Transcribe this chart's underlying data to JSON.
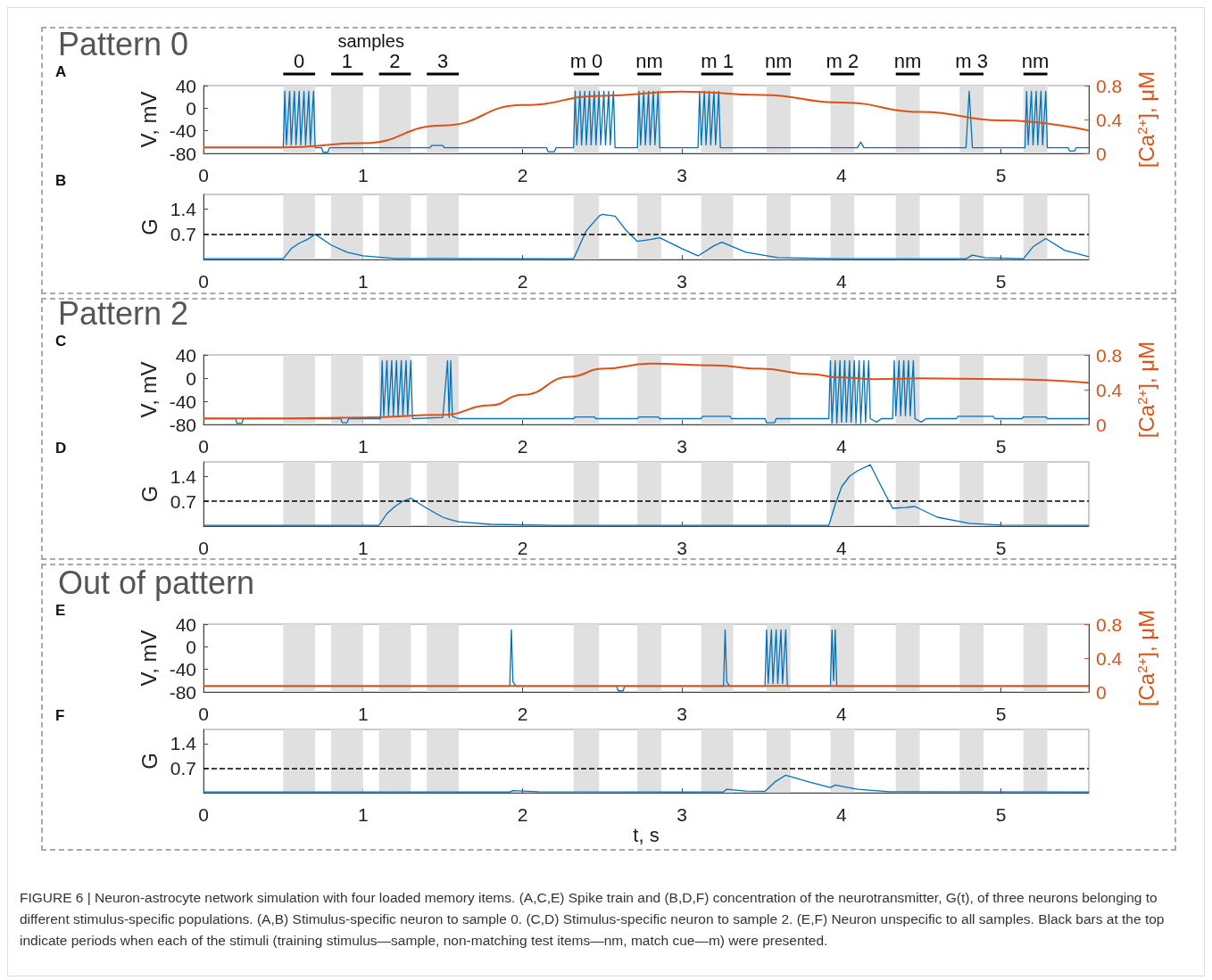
{
  "chart_data": [
    {
      "type": "line",
      "title": "Pattern 0",
      "ylabel": "V, mV",
      "y2label": "[Ca$^{2+}$], μM",
      "marker": "none",
      "xlim": [
        0,
        5.55
      ],
      "xticks": [
        0,
        1,
        2,
        3,
        4,
        5
      ],
      "ylim": [
        -80,
        40
      ],
      "yticks": [
        -80,
        -40,
        0,
        40
      ],
      "y2lim": [
        0,
        0.8
      ],
      "y2ticks": [
        0,
        0.4,
        0.8
      ],
      "series": [
        {
          "color": "#0072bd",
          "x": [
            0,
            0.5,
            0.51,
            0.52,
            0.54,
            0.55,
            0.57,
            0.58,
            0.6,
            0.61,
            0.63,
            0.64,
            0.66,
            0.67,
            0.69,
            0.7,
            0.74,
            0.75,
            0.78,
            0.79,
            1.42,
            1.43,
            1.5,
            1.51,
            2.15,
            2.16,
            2.2,
            2.21,
            2.32,
            2.33,
            2.34,
            2.36,
            2.37,
            2.39,
            2.4,
            2.42,
            2.43,
            2.45,
            2.46,
            2.48,
            2.49,
            2.51,
            2.52,
            2.54,
            2.55,
            2.57,
            2.58,
            2.72,
            2.73,
            2.74,
            2.76,
            2.77,
            2.79,
            2.8,
            2.82,
            2.83,
            2.85,
            2.86,
            3.1,
            3.11,
            3.12,
            3.14,
            3.15,
            3.17,
            3.18,
            3.2,
            3.21,
            3.23,
            3.24,
            4.1,
            4.12,
            4.14,
            4.78,
            4.8,
            4.82,
            5.15,
            5.16,
            5.17,
            5.19,
            5.2,
            5.22,
            5.23,
            5.25,
            5.26,
            5.28,
            5.29,
            5.42,
            5.43,
            5.46,
            5.47,
            5.55
          ],
          "values": [
            -70,
            -70,
            30,
            -65,
            30,
            -65,
            30,
            -65,
            30,
            -65,
            30,
            -65,
            30,
            -65,
            30,
            -70,
            -70,
            -78,
            -78,
            -70,
            -70,
            -66,
            -66,
            -70,
            -70,
            -77,
            -77,
            -70,
            -70,
            30,
            -65,
            30,
            -65,
            30,
            -65,
            30,
            -65,
            30,
            -65,
            30,
            -65,
            30,
            -65,
            30,
            -65,
            30,
            -70,
            -70,
            30,
            -65,
            30,
            -65,
            30,
            -65,
            30,
            -65,
            30,
            -70,
            -70,
            30,
            -65,
            30,
            -65,
            30,
            -65,
            30,
            -65,
            30,
            -70,
            -70,
            -60,
            -70,
            -70,
            30,
            -70,
            -70,
            30,
            -65,
            30,
            -65,
            30,
            -65,
            30,
            -65,
            30,
            -70,
            -70,
            -76,
            -76,
            -70,
            -70
          ]
        },
        {
          "color": "#d95319",
          "axis": "y2",
          "x": [
            0,
            0.5,
            1,
            1.5,
            2,
            2.5,
            3,
            3.5,
            4,
            4.5,
            5,
            5.55
          ],
          "values": [
            0.07,
            0.07,
            0.12,
            0.33,
            0.57,
            0.68,
            0.73,
            0.69,
            0.6,
            0.49,
            0.39,
            0.27
          ]
        }
      ],
      "bands": [
        {
          "axis": "x",
          "from": 0.5,
          "to": 0.7,
          "color": "#e0e0e0"
        },
        {
          "axis": "x",
          "from": 0.8,
          "to": 1.0,
          "color": "#e0e0e0"
        },
        {
          "axis": "x",
          "from": 1.1,
          "to": 1.3,
          "color": "#e0e0e0"
        },
        {
          "axis": "x",
          "from": 1.4,
          "to": 1.6,
          "color": "#e0e0e0"
        },
        {
          "axis": "x",
          "from": 2.32,
          "to": 2.48,
          "color": "#e0e0e0"
        },
        {
          "axis": "x",
          "from": 2.72,
          "to": 2.87,
          "color": "#e0e0e0"
        },
        {
          "axis": "x",
          "from": 3.12,
          "to": 3.32,
          "color": "#e0e0e0"
        },
        {
          "axis": "x",
          "from": 3.53,
          "to": 3.68,
          "color": "#e0e0e0"
        },
        {
          "axis": "x",
          "from": 3.93,
          "to": 4.08,
          "color": "#e0e0e0"
        },
        {
          "axis": "x",
          "from": 4.34,
          "to": 4.49,
          "color": "#e0e0e0"
        },
        {
          "axis": "x",
          "from": 4.74,
          "to": 4.89,
          "color": "#e0e0e0"
        },
        {
          "axis": "x",
          "from": 5.14,
          "to": 5.29,
          "color": "#e0e0e0"
        }
      ],
      "annotations": [
        "A",
        "samples",
        "0",
        "1",
        "2",
        "3",
        "m 0",
        "nm",
        "m 1",
        "nm",
        "m 2",
        "nm",
        "m 3",
        "nm"
      ]
    },
    {
      "type": "line",
      "ylabel": "G",
      "marker": "none",
      "xlim": [
        0,
        5.55
      ],
      "xticks": [
        0,
        1,
        2,
        3,
        4,
        5
      ],
      "ylim": [
        0,
        1.8
      ],
      "yticks": [
        0.7,
        1.4
      ],
      "series": [
        {
          "color": "#0072bd",
          "x": [
            0,
            0.5,
            0.55,
            0.6,
            0.65,
            0.7,
            0.8,
            0.9,
            1,
            1.2,
            2.32,
            2.4,
            2.48,
            2.5,
            2.58,
            2.65,
            2.72,
            2.8,
            2.86,
            3,
            3.1,
            3.2,
            3.25,
            3.4,
            3.6,
            4,
            4.78,
            4.82,
            4.9,
            5.14,
            5.2,
            5.28,
            5.4,
            5.55
          ],
          "values": [
            0.02,
            0.02,
            0.3,
            0.45,
            0.55,
            0.7,
            0.4,
            0.2,
            0.1,
            0.03,
            0.02,
            0.8,
            1.2,
            1.25,
            1.2,
            0.8,
            0.5,
            0.55,
            0.6,
            0.3,
            0.1,
            0.38,
            0.48,
            0.2,
            0.05,
            0.02,
            0.02,
            0.12,
            0.05,
            0.02,
            0.35,
            0.58,
            0.25,
            0.08
          ]
        }
      ],
      "ref_lines": [
        {
          "axis": "y",
          "value": 0.7,
          "color": "#000000",
          "line_style": "dashed"
        }
      ],
      "bands": [
        {
          "axis": "x",
          "from": 0.5,
          "to": 0.7,
          "color": "#e0e0e0"
        },
        {
          "axis": "x",
          "from": 0.8,
          "to": 1.0,
          "color": "#e0e0e0"
        },
        {
          "axis": "x",
          "from": 1.1,
          "to": 1.3,
          "color": "#e0e0e0"
        },
        {
          "axis": "x",
          "from": 1.4,
          "to": 1.6,
          "color": "#e0e0e0"
        },
        {
          "axis": "x",
          "from": 2.32,
          "to": 2.48,
          "color": "#e0e0e0"
        },
        {
          "axis": "x",
          "from": 2.72,
          "to": 2.87,
          "color": "#e0e0e0"
        },
        {
          "axis": "x",
          "from": 3.12,
          "to": 3.32,
          "color": "#e0e0e0"
        },
        {
          "axis": "x",
          "from": 3.53,
          "to": 3.68,
          "color": "#e0e0e0"
        },
        {
          "axis": "x",
          "from": 3.93,
          "to": 4.08,
          "color": "#e0e0e0"
        },
        {
          "axis": "x",
          "from": 4.34,
          "to": 4.49,
          "color": "#e0e0e0"
        },
        {
          "axis": "x",
          "from": 4.74,
          "to": 4.89,
          "color": "#e0e0e0"
        },
        {
          "axis": "x",
          "from": 5.14,
          "to": 5.29,
          "color": "#e0e0e0"
        }
      ],
      "annotations": [
        "B"
      ]
    },
    {
      "type": "line",
      "title": "Pattern 2",
      "ylabel": "V, mV",
      "y2label": "[Ca$^{2+}$], μM",
      "marker": "none",
      "xlim": [
        0,
        5.55
      ],
      "xticks": [
        0,
        1,
        2,
        3,
        4,
        5
      ],
      "ylim": [
        -80,
        40
      ],
      "yticks": [
        -80,
        -40,
        0,
        40
      ],
      "y2lim": [
        0,
        0.8
      ],
      "y2ticks": [
        0,
        0.4,
        0.8
      ],
      "series": [
        {
          "color": "#0072bd",
          "x": [
            0,
            0.2,
            0.21,
            0.24,
            0.25,
            0.86,
            0.87,
            0.9,
            0.91,
            1.11,
            1.12,
            1.13,
            1.15,
            1.16,
            1.18,
            1.19,
            1.21,
            1.22,
            1.24,
            1.25,
            1.27,
            1.28,
            1.3,
            1.31,
            1.5,
            1.53,
            1.54,
            1.55,
            1.56,
            1.6,
            2.32,
            2.33,
            2.45,
            2.46,
            2.72,
            2.73,
            2.85,
            2.86,
            3.12,
            3.13,
            3.3,
            3.31,
            3.52,
            3.53,
            3.58,
            3.59,
            3.92,
            3.93,
            3.94,
            3.96,
            3.97,
            3.99,
            4.0,
            4.02,
            4.03,
            4.05,
            4.06,
            4.08,
            4.09,
            4.11,
            4.12,
            4.14,
            4.15,
            4.17,
            4.18,
            4.22,
            4.25,
            4.32,
            4.33,
            4.34,
            4.36,
            4.37,
            4.39,
            4.4,
            4.42,
            4.43,
            4.45,
            4.46,
            4.5,
            4.53,
            4.72,
            4.73,
            4.95,
            4.96,
            5.13,
            5.14,
            5.28,
            5.29,
            5.55
          ],
          "values": [
            -70,
            -70,
            -78,
            -78,
            -70,
            -70,
            -77,
            -77,
            -70,
            -70,
            30,
            -65,
            30,
            -65,
            30,
            -65,
            30,
            -65,
            30,
            -65,
            30,
            -65,
            30,
            -70,
            -68,
            30,
            -68,
            30,
            -66,
            -70,
            -70,
            -67,
            -67,
            -70,
            -70,
            -67,
            -67,
            -70,
            -70,
            -66,
            -66,
            -70,
            -70,
            -77,
            -77,
            -70,
            -70,
            30,
            -78,
            30,
            -78,
            30,
            -76,
            30,
            -76,
            30,
            -76,
            30,
            -78,
            30,
            -78,
            30,
            -76,
            30,
            -70,
            -76,
            -70,
            -70,
            30,
            -65,
            30,
            -65,
            30,
            -65,
            30,
            -65,
            30,
            -70,
            -76,
            -70,
            -70,
            -66,
            -66,
            -70,
            -70,
            -67,
            -67,
            -70,
            -70
          ]
        },
        {
          "color": "#d95319",
          "axis": "y2",
          "x": [
            0,
            0.5,
            1,
            1.5,
            1.8,
            2,
            2.3,
            2.5,
            2.8,
            3.2,
            3.5,
            3.8,
            4,
            4.2,
            4.5,
            5,
            5.55
          ],
          "values": [
            0.07,
            0.07,
            0.08,
            0.11,
            0.22,
            0.34,
            0.55,
            0.64,
            0.7,
            0.68,
            0.64,
            0.58,
            0.54,
            0.52,
            0.53,
            0.52,
            0.48
          ]
        }
      ],
      "bands": [
        {
          "axis": "x",
          "from": 0.5,
          "to": 0.7,
          "color": "#e0e0e0"
        },
        {
          "axis": "x",
          "from": 0.8,
          "to": 1.0,
          "color": "#e0e0e0"
        },
        {
          "axis": "x",
          "from": 1.1,
          "to": 1.3,
          "color": "#e0e0e0"
        },
        {
          "axis": "x",
          "from": 1.4,
          "to": 1.6,
          "color": "#e0e0e0"
        },
        {
          "axis": "x",
          "from": 2.32,
          "to": 2.48,
          "color": "#e0e0e0"
        },
        {
          "axis": "x",
          "from": 2.72,
          "to": 2.87,
          "color": "#e0e0e0"
        },
        {
          "axis": "x",
          "from": 3.12,
          "to": 3.32,
          "color": "#e0e0e0"
        },
        {
          "axis": "x",
          "from": 3.53,
          "to": 3.68,
          "color": "#e0e0e0"
        },
        {
          "axis": "x",
          "from": 3.93,
          "to": 4.08,
          "color": "#e0e0e0"
        },
        {
          "axis": "x",
          "from": 4.34,
          "to": 4.49,
          "color": "#e0e0e0"
        },
        {
          "axis": "x",
          "from": 4.74,
          "to": 4.89,
          "color": "#e0e0e0"
        },
        {
          "axis": "x",
          "from": 5.14,
          "to": 5.29,
          "color": "#e0e0e0"
        }
      ],
      "annotations": [
        "C"
      ]
    },
    {
      "type": "line",
      "ylabel": "G",
      "marker": "none",
      "xlim": [
        0,
        5.55
      ],
      "xticks": [
        0,
        1,
        2,
        3,
        4,
        5
      ],
      "ylim": [
        0,
        1.8
      ],
      "yticks": [
        0.7,
        1.4
      ],
      "series": [
        {
          "color": "#0072bd",
          "x": [
            0,
            1.1,
            1.15,
            1.2,
            1.25,
            1.3,
            1.4,
            1.5,
            1.55,
            1.6,
            1.8,
            2.2,
            3.92,
            3.96,
            4.0,
            4.05,
            4.1,
            4.18,
            4.25,
            4.32,
            4.4,
            4.46,
            4.6,
            4.8,
            5.0,
            5.55
          ],
          "values": [
            0.02,
            0.02,
            0.35,
            0.55,
            0.7,
            0.78,
            0.5,
            0.25,
            0.18,
            0.12,
            0.05,
            0.02,
            0.02,
            0.6,
            1.1,
            1.4,
            1.55,
            1.72,
            1.1,
            0.5,
            0.52,
            0.55,
            0.25,
            0.08,
            0.03,
            0.02
          ]
        }
      ],
      "ref_lines": [
        {
          "axis": "y",
          "value": 0.7,
          "color": "#000000",
          "line_style": "dashed"
        }
      ],
      "bands": [
        {
          "axis": "x",
          "from": 0.5,
          "to": 0.7,
          "color": "#e0e0e0"
        },
        {
          "axis": "x",
          "from": 0.8,
          "to": 1.0,
          "color": "#e0e0e0"
        },
        {
          "axis": "x",
          "from": 1.1,
          "to": 1.3,
          "color": "#e0e0e0"
        },
        {
          "axis": "x",
          "from": 1.4,
          "to": 1.6,
          "color": "#e0e0e0"
        },
        {
          "axis": "x",
          "from": 2.32,
          "to": 2.48,
          "color": "#e0e0e0"
        },
        {
          "axis": "x",
          "from": 2.72,
          "to": 2.87,
          "color": "#e0e0e0"
        },
        {
          "axis": "x",
          "from": 3.12,
          "to": 3.32,
          "color": "#e0e0e0"
        },
        {
          "axis": "x",
          "from": 3.53,
          "to": 3.68,
          "color": "#e0e0e0"
        },
        {
          "axis": "x",
          "from": 3.93,
          "to": 4.08,
          "color": "#e0e0e0"
        },
        {
          "axis": "x",
          "from": 4.34,
          "to": 4.49,
          "color": "#e0e0e0"
        },
        {
          "axis": "x",
          "from": 4.74,
          "to": 4.89,
          "color": "#e0e0e0"
        },
        {
          "axis": "x",
          "from": 5.14,
          "to": 5.29,
          "color": "#e0e0e0"
        }
      ],
      "annotations": [
        "D"
      ]
    },
    {
      "type": "line",
      "title": "Out of pattern",
      "ylabel": "V, mV",
      "y2label": "[Ca$^{2+}$], μM",
      "marker": "none",
      "xlim": [
        0,
        5.55
      ],
      "xticks": [
        0,
        1,
        2,
        3,
        4,
        5
      ],
      "ylim": [
        -80,
        40
      ],
      "yticks": [
        -80,
        -40,
        0,
        40
      ],
      "y2lim": [
        0,
        0.8
      ],
      "y2ticks": [
        0,
        0.4,
        0.8
      ],
      "series": [
        {
          "color": "#0072bd",
          "x": [
            0,
            1.92,
            1.93,
            1.94,
            1.96,
            2.59,
            2.6,
            2.63,
            2.64,
            3.26,
            3.27,
            3.28,
            3.3,
            3.52,
            3.53,
            3.54,
            3.56,
            3.57,
            3.59,
            3.6,
            3.62,
            3.63,
            3.65,
            3.66,
            3.93,
            3.94,
            3.95,
            3.96,
            3.97,
            5.55
          ],
          "values": [
            -70,
            -70,
            30,
            -62,
            -70,
            -70,
            -78,
            -78,
            -70,
            -70,
            30,
            -62,
            -70,
            -70,
            30,
            -65,
            30,
            -65,
            30,
            -65,
            30,
            -65,
            30,
            -70,
            -70,
            30,
            -60,
            30,
            -70,
            -70
          ]
        },
        {
          "color": "#d95319",
          "axis": "y2",
          "x": [
            0,
            2,
            4,
            5.55
          ],
          "values": [
            0.07,
            0.07,
            0.07,
            0.07
          ]
        }
      ],
      "bands": [
        {
          "axis": "x",
          "from": 0.5,
          "to": 0.7,
          "color": "#e0e0e0"
        },
        {
          "axis": "x",
          "from": 0.8,
          "to": 1.0,
          "color": "#e0e0e0"
        },
        {
          "axis": "x",
          "from": 1.1,
          "to": 1.3,
          "color": "#e0e0e0"
        },
        {
          "axis": "x",
          "from": 1.4,
          "to": 1.6,
          "color": "#e0e0e0"
        },
        {
          "axis": "x",
          "from": 2.32,
          "to": 2.48,
          "color": "#e0e0e0"
        },
        {
          "axis": "x",
          "from": 2.72,
          "to": 2.87,
          "color": "#e0e0e0"
        },
        {
          "axis": "x",
          "from": 3.12,
          "to": 3.32,
          "color": "#e0e0e0"
        },
        {
          "axis": "x",
          "from": 3.53,
          "to": 3.68,
          "color": "#e0e0e0"
        },
        {
          "axis": "x",
          "from": 3.93,
          "to": 4.08,
          "color": "#e0e0e0"
        },
        {
          "axis": "x",
          "from": 4.34,
          "to": 4.49,
          "color": "#e0e0e0"
        },
        {
          "axis": "x",
          "from": 4.74,
          "to": 4.89,
          "color": "#e0e0e0"
        },
        {
          "axis": "x",
          "from": 5.14,
          "to": 5.29,
          "color": "#e0e0e0"
        }
      ],
      "annotations": [
        "E"
      ]
    },
    {
      "type": "line",
      "ylabel": "G",
      "xlabel": "t, s",
      "marker": "none",
      "xlim": [
        0,
        5.55
      ],
      "xticks": [
        0,
        1,
        2,
        3,
        4,
        5
      ],
      "ylim": [
        0,
        1.8
      ],
      "yticks": [
        0.7,
        1.4
      ],
      "series": [
        {
          "color": "#0072bd",
          "x": [
            0,
            1.92,
            1.94,
            2.1,
            3.26,
            3.28,
            3.4,
            3.52,
            3.58,
            3.65,
            3.8,
            3.93,
            3.96,
            4.1,
            4.3,
            5.55
          ],
          "values": [
            0.02,
            0.02,
            0.06,
            0.03,
            0.02,
            0.1,
            0.05,
            0.04,
            0.3,
            0.5,
            0.3,
            0.15,
            0.22,
            0.1,
            0.03,
            0.02
          ]
        }
      ],
      "ref_lines": [
        {
          "axis": "y",
          "value": 0.7,
          "color": "#000000",
          "line_style": "dashed"
        }
      ],
      "bands": [
        {
          "axis": "x",
          "from": 0.5,
          "to": 0.7,
          "color": "#e0e0e0"
        },
        {
          "axis": "x",
          "from": 0.8,
          "to": 1.0,
          "color": "#e0e0e0"
        },
        {
          "axis": "x",
          "from": 1.1,
          "to": 1.3,
          "color": "#e0e0e0"
        },
        {
          "axis": "x",
          "from": 1.4,
          "to": 1.6,
          "color": "#e0e0e0"
        },
        {
          "axis": "x",
          "from": 2.32,
          "to": 2.48,
          "color": "#e0e0e0"
        },
        {
          "axis": "x",
          "from": 2.72,
          "to": 2.87,
          "color": "#e0e0e0"
        },
        {
          "axis": "x",
          "from": 3.12,
          "to": 3.32,
          "color": "#e0e0e0"
        },
        {
          "axis": "x",
          "from": 3.53,
          "to": 3.68,
          "color": "#e0e0e0"
        },
        {
          "axis": "x",
          "from": 3.93,
          "to": 4.08,
          "color": "#e0e0e0"
        },
        {
          "axis": "x",
          "from": 4.34,
          "to": 4.49,
          "color": "#e0e0e0"
        },
        {
          "axis": "x",
          "from": 4.74,
          "to": 4.89,
          "color": "#e0e0e0"
        },
        {
          "axis": "x",
          "from": 5.14,
          "to": 5.29,
          "color": "#e0e0e0"
        }
      ],
      "annotations": [
        "F",
        "FIGURE 6 | Neuron-astrocyte network simulation with four loaded memory items. (A,C,E) Spike train and (B,D,F) concentration of the neurotransmitter, G(t), of three neurons belonging to different stimulus-specific populations. (A,B) Stimulus-specific neuron to sample 0. (C,D) Stimulus-specific neuron to sample 2. (E,F) Neuron unspecific to all samples. Black bars at the top indicate periods when each of the stimuli (training stimulus—sample, non-matching test items—nm, match cue—m) were presented."
      ]
    }
  ]
}
